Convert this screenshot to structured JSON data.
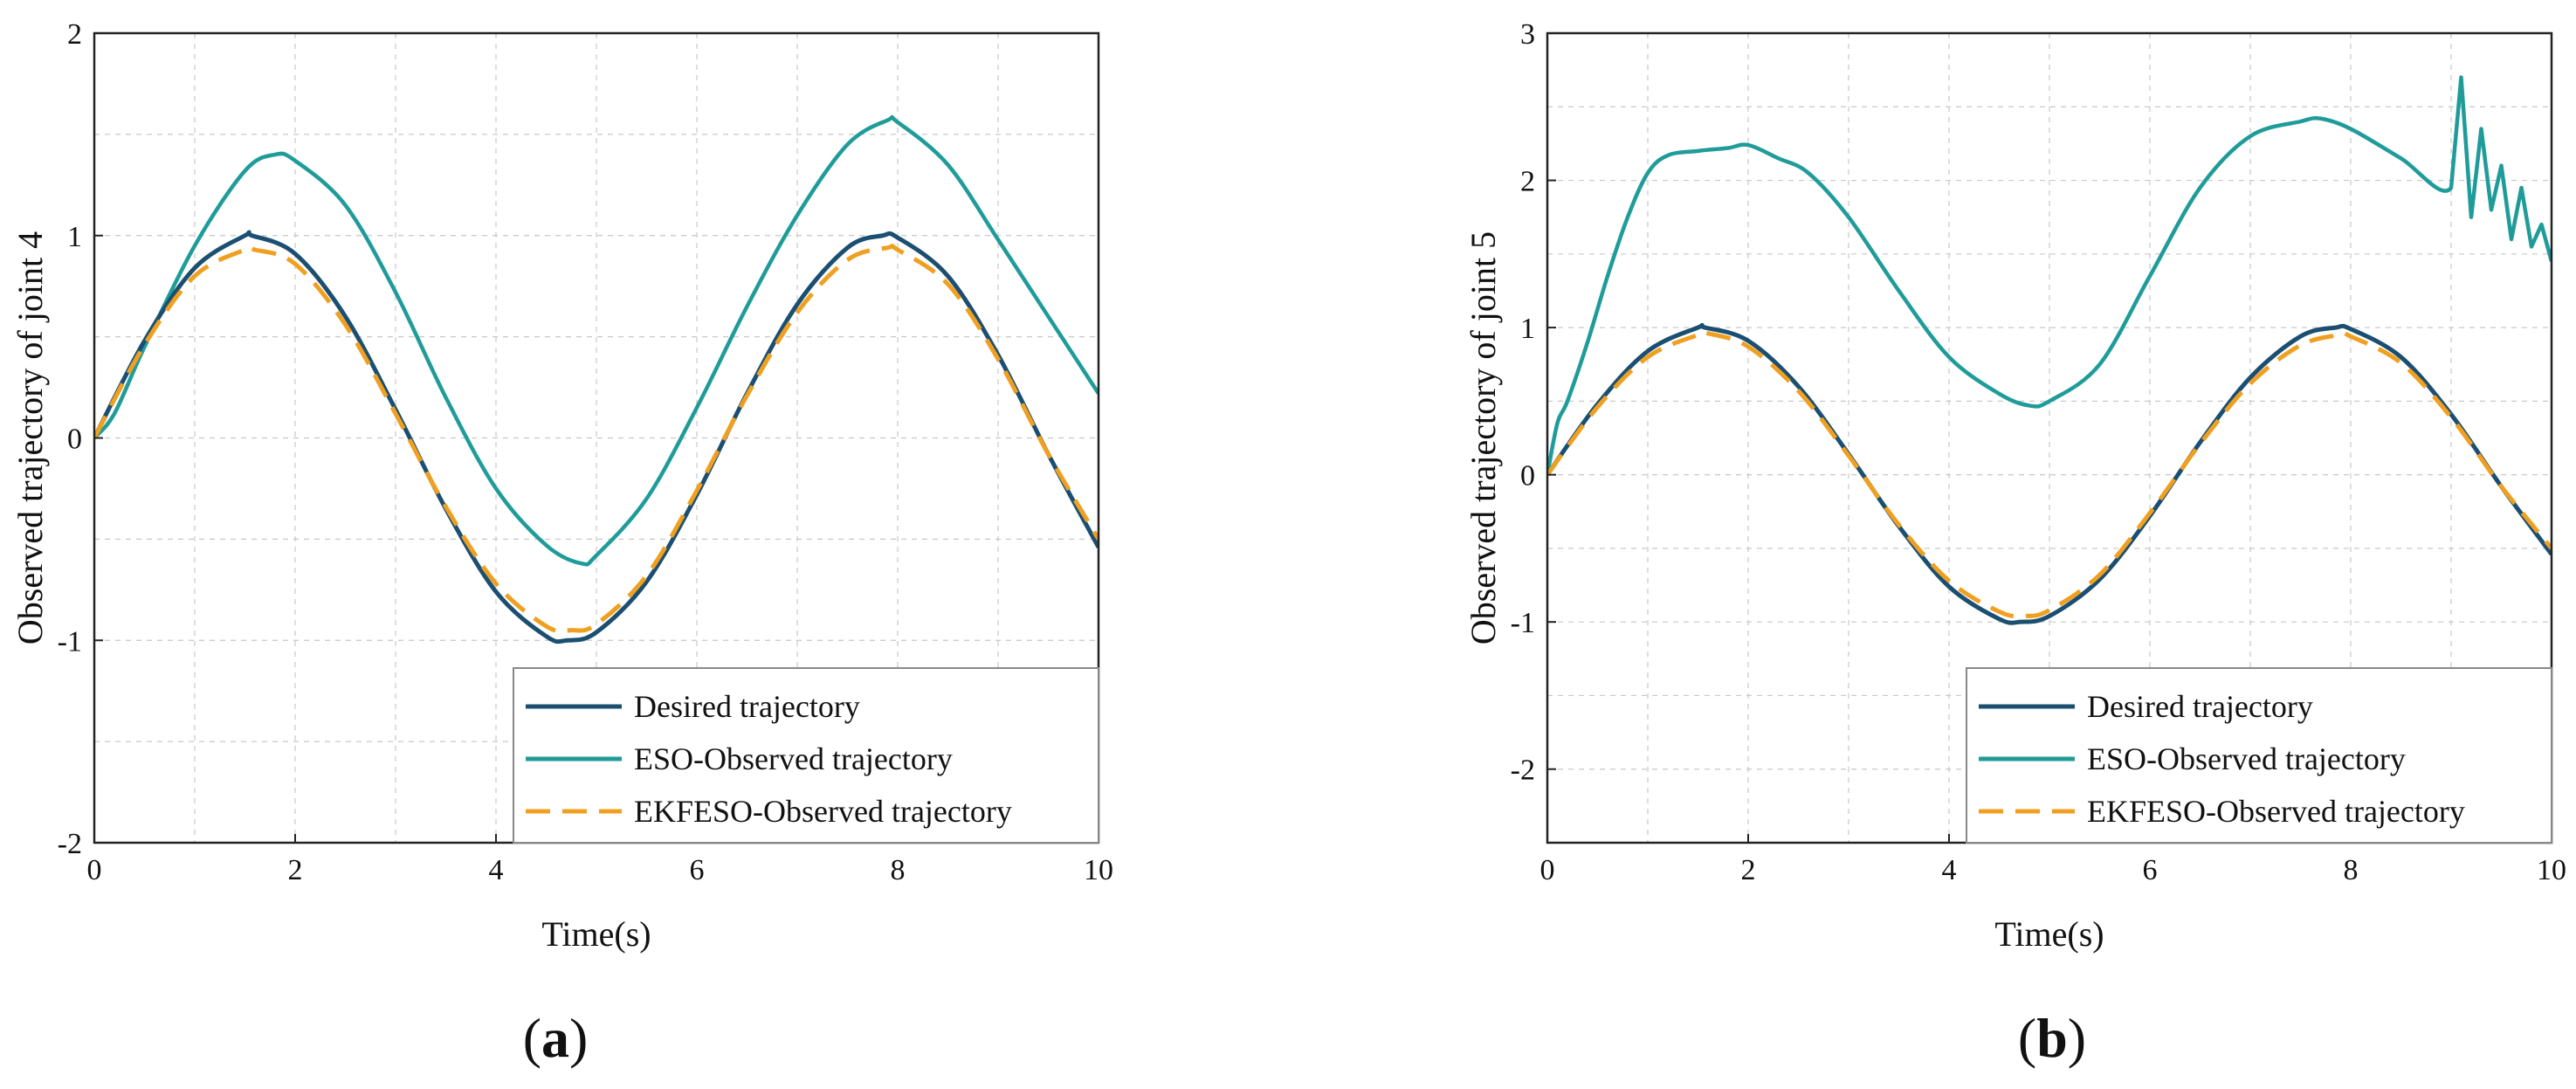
{
  "colors": {
    "desired": "#1b4f72",
    "eso": "#1f9c9a",
    "ekfeso": "#f0a020",
    "grid": "#c8c8c8",
    "axis": "#222222"
  },
  "chart_data": [
    {
      "id": "a",
      "type": "line",
      "subfigure_label": "a",
      "xlabel": "Time(s)",
      "ylabel": "Observed trajectory of joint 4",
      "xlim": [
        0,
        10
      ],
      "ylim": [
        -2,
        2
      ],
      "xticks": [
        0,
        2,
        4,
        6,
        8,
        10
      ],
      "yticks": [
        -2,
        -1,
        0,
        1,
        2
      ],
      "xtick_labels": [
        "0",
        "2",
        "4",
        "6",
        "8",
        "10"
      ],
      "ytick_labels": [
        "-2",
        "-1",
        "0",
        "1",
        "2"
      ],
      "grid": true,
      "legend_position": "bottom-right",
      "series": [
        {
          "key": "desired",
          "name": "Desired trajectory",
          "style": "solid",
          "x": [
            0,
            0.5,
            1,
            1.5,
            1.57,
            2,
            2.5,
            3,
            3.5,
            4,
            4.5,
            4.71,
            5,
            5.5,
            6,
            6.5,
            7,
            7.5,
            7.85,
            8,
            8.5,
            9,
            9.5,
            10
          ],
          "y": [
            0,
            0.48,
            0.84,
            1.0,
            1.0,
            0.91,
            0.6,
            0.14,
            -0.35,
            -0.76,
            -0.98,
            -1.0,
            -0.96,
            -0.71,
            -0.28,
            0.22,
            0.66,
            0.94,
            1.0,
            0.99,
            0.8,
            0.41,
            -0.08,
            -0.54
          ]
        },
        {
          "key": "eso",
          "name": "ESO-Observed trajectory",
          "style": "solid",
          "x": [
            0,
            0.2,
            0.5,
            1,
            1.5,
            1.8,
            2,
            2.5,
            3,
            3.5,
            4,
            4.5,
            4.85,
            5,
            5.5,
            6,
            6.5,
            7,
            7.5,
            7.9,
            8,
            8.5,
            9,
            9.5,
            10
          ],
          "y": [
            0,
            0.12,
            0.45,
            0.95,
            1.32,
            1.4,
            1.37,
            1.15,
            0.72,
            0.2,
            -0.25,
            -0.53,
            -0.62,
            -0.58,
            -0.3,
            0.15,
            0.65,
            1.1,
            1.45,
            1.57,
            1.56,
            1.35,
            0.98,
            0.6,
            0.22
          ]
        },
        {
          "key": "ekfeso",
          "name": "EKFESO-Observed trajectory",
          "style": "dashed",
          "x": [
            0,
            0.5,
            1,
            1.5,
            1.6,
            2,
            2.5,
            3,
            3.5,
            4,
            4.5,
            4.75,
            5,
            5.5,
            6,
            6.5,
            7,
            7.5,
            7.9,
            8,
            8.5,
            9,
            9.5,
            10
          ],
          "y": [
            0,
            0.46,
            0.8,
            0.93,
            0.93,
            0.86,
            0.56,
            0.12,
            -0.34,
            -0.72,
            -0.93,
            -0.95,
            -0.92,
            -0.68,
            -0.26,
            0.21,
            0.62,
            0.88,
            0.94,
            0.93,
            0.76,
            0.39,
            -0.08,
            -0.5
          ]
        }
      ]
    },
    {
      "id": "b",
      "type": "line",
      "subfigure_label": "b",
      "xlabel": "Time(s)",
      "ylabel": "Observed trajectory of joint 5",
      "xlim": [
        0,
        10
      ],
      "ylim": [
        -2.5,
        3
      ],
      "xticks": [
        0,
        2,
        4,
        6,
        8,
        10
      ],
      "yticks": [
        -2,
        -1,
        0,
        1,
        2,
        3
      ],
      "xtick_labels": [
        "0",
        "2",
        "4",
        "6",
        "8",
        "10"
      ],
      "ytick_labels": [
        "-2",
        "-1",
        "0",
        "1",
        "2",
        "3"
      ],
      "grid": true,
      "legend_position": "bottom-right",
      "series": [
        {
          "key": "desired",
          "name": "Desired trajectory",
          "style": "solid",
          "x": [
            0,
            0.5,
            1,
            1.5,
            1.57,
            2,
            2.5,
            3,
            3.5,
            4,
            4.5,
            4.71,
            5,
            5.5,
            6,
            6.5,
            7,
            7.5,
            7.85,
            8,
            8.5,
            9,
            9.5,
            10
          ],
          "y": [
            0,
            0.48,
            0.84,
            1.0,
            1.0,
            0.91,
            0.6,
            0.14,
            -0.35,
            -0.76,
            -0.98,
            -1.0,
            -0.96,
            -0.71,
            -0.28,
            0.22,
            0.66,
            0.94,
            1.0,
            0.99,
            0.8,
            0.41,
            -0.08,
            -0.54
          ]
        },
        {
          "key": "eso",
          "name": "ESO-Observed trajectory",
          "style": "solid",
          "x": [
            0,
            0.1,
            0.2,
            0.4,
            0.6,
            0.8,
            1,
            1.2,
            1.5,
            1.8,
            2,
            2.3,
            2.6,
            3,
            3.5,
            4,
            4.5,
            4.8,
            5,
            5.5,
            6,
            6.5,
            7,
            7.5,
            7.7,
            8,
            8.5,
            9,
            9.1,
            9.2,
            9.3,
            9.4,
            9.5,
            9.6,
            9.7,
            9.8,
            9.9,
            10
          ],
          "y": [
            0,
            0.35,
            0.5,
            0.9,
            1.35,
            1.75,
            2.05,
            2.17,
            2.2,
            2.22,
            2.24,
            2.15,
            2.05,
            1.75,
            1.25,
            0.8,
            0.55,
            0.47,
            0.5,
            0.75,
            1.35,
            1.95,
            2.3,
            2.4,
            2.42,
            2.35,
            2.15,
            1.95,
            2.7,
            1.75,
            2.35,
            1.8,
            2.1,
            1.6,
            1.95,
            1.55,
            1.7,
            1.45
          ]
        },
        {
          "key": "ekfeso",
          "name": "EKFESO-Observed trajectory",
          "style": "dashed",
          "x": [
            0,
            0.5,
            1,
            1.5,
            1.6,
            2,
            2.5,
            3,
            3.5,
            4,
            4.5,
            4.75,
            5,
            5.5,
            6,
            6.5,
            7,
            7.5,
            7.9,
            8,
            8.5,
            9,
            9.5,
            10
          ],
          "y": [
            0,
            0.46,
            0.8,
            0.95,
            0.96,
            0.87,
            0.57,
            0.13,
            -0.34,
            -0.72,
            -0.93,
            -0.96,
            -0.92,
            -0.68,
            -0.26,
            0.21,
            0.62,
            0.88,
            0.95,
            0.94,
            0.76,
            0.39,
            -0.08,
            -0.5
          ]
        }
      ]
    }
  ]
}
